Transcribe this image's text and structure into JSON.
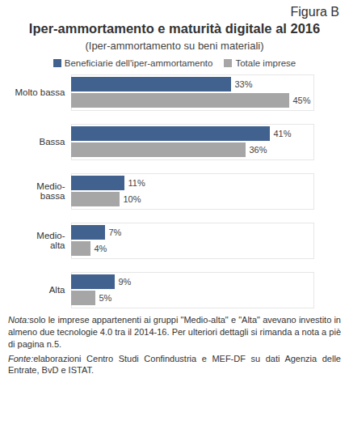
{
  "chart_data": {
    "type": "bar",
    "orientation": "horizontal",
    "figure_label": "Figura B",
    "title": "Iper-ammortamento e maturità digitale al 2016",
    "subtitle": "(Iper-ammortamento su beni materiali)",
    "categories": [
      "Molto bassa",
      "Bassa",
      "Medio-bassa",
      "Medio-alta",
      "Alta"
    ],
    "series": [
      {
        "name": "Beneficiarie dell'iper-ammortamento",
        "color": "#41618f",
        "values": [
          33,
          41,
          11,
          7,
          9
        ],
        "value_labels": [
          "33%",
          "41%",
          "11%",
          "7%",
          "9%"
        ]
      },
      {
        "name": "Totale imprese",
        "color": "#a6a6a6",
        "values": [
          45,
          36,
          10,
          4,
          5
        ],
        "value_labels": [
          "45%",
          "36%",
          "10%",
          "4%",
          "5%"
        ]
      }
    ],
    "xlim": [
      0,
      50
    ],
    "xticks": [],
    "grid": false,
    "legend": "top",
    "data_labels": true,
    "tick_labels": "y",
    "annotations": [
      {
        "label": "Nota:",
        "text": "solo le imprese appartenenti ai gruppi \"Medio-alta\" e \"Alta\" avevano investito in almeno due tecnologie 4.0 tra il 2014-16. Per ulteriori dettagli si rimanda a nota a piè di pagina n.5."
      },
      {
        "label": "Fonte:",
        "text": "elaborazioni Centro Studi Confindustria e MEF-DF su dati Agenzia delle Entrate, BvD e ISTAT."
      }
    ]
  }
}
